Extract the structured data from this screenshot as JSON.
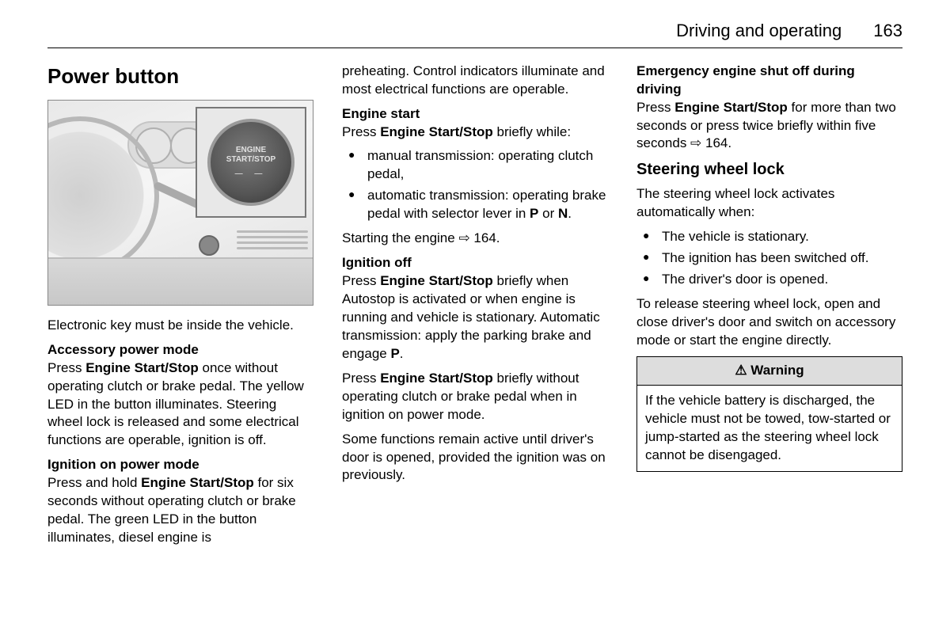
{
  "header": {
    "section": "Driving and operating",
    "page": "163"
  },
  "col1": {
    "h1": "Power button",
    "illustration": {
      "button_line1": "ENGINE",
      "button_line2": "START/STOP"
    },
    "p_key": "Electronic key must be inside the vehicle.",
    "accessory_head": "Accessory power mode",
    "accessory_pre": "Press ",
    "accessory_bold": "Engine Start/Stop",
    "accessory_post": " once without operating clutch or brake pedal. The yellow LED in the button illuminates. Steering wheel lock is released and some electrical functions are operable, ignition is off.",
    "ignition_on_head": "Ignition on power mode",
    "ignition_on_pre": "Press and hold ",
    "ignition_on_bold": "Engine Start/Stop",
    "ignition_on_post": " for six seconds without operating clutch or brake pedal. The green LED in the button illuminates, diesel engine is"
  },
  "col2": {
    "cont": "preheating. Control indicators illuminate and most electrical functions are operable.",
    "engine_start_head": "Engine start",
    "engine_start_pre": "Press ",
    "engine_start_bold": "Engine Start/Stop",
    "engine_start_post": " briefly while:",
    "li1": "manual transmission: operating clutch pedal,",
    "li2_pre": "automatic transmission: operating brake pedal with selector lever in ",
    "li2_b1": "P",
    "li2_mid": " or ",
    "li2_b2": "N",
    "li2_post": ".",
    "start_ref": "Starting the engine ⇨ 164.",
    "ignition_off_head": "Ignition off",
    "ignition_off_p1_pre": "Press ",
    "ignition_off_p1_bold": "Engine Start/Stop",
    "ignition_off_p1_post": " briefly when Autostop is activated or when engine is running and vehicle is stationary. Automatic transmission: apply the parking brake and engage ",
    "ignition_off_p1_b2": "P",
    "ignition_off_p1_end": ".",
    "ignition_off_p2_pre": "Press ",
    "ignition_off_p2_bold": "Engine Start/Stop",
    "ignition_off_p2_post": " briefly without operating clutch or brake pedal when in ignition on power mode.",
    "ignition_off_p3": "Some functions remain active until driver's door is opened, provided the ignition was on previously."
  },
  "col3": {
    "emergency_head": "Emergency engine shut off during driving",
    "emergency_pre": "Press ",
    "emergency_bold": "Engine Start/Stop",
    "emergency_post": " for more than two seconds or press twice briefly within five seconds ⇨ 164.",
    "steering_h2": "Steering wheel lock",
    "steering_intro": "The steering wheel lock activates automatically when:",
    "s_li1": "The vehicle is stationary.",
    "s_li2": "The ignition has been switched off.",
    "s_li3": "The driver's door is opened.",
    "steering_release": "To release steering wheel lock, open and close driver's door and switch on accessory mode or start the engine directly.",
    "warning_label": "⚠ Warning",
    "warning_text": "If the vehicle battery is discharged, the vehicle must not be towed, tow-started or jump-started as the steering wheel lock cannot be disengaged."
  }
}
